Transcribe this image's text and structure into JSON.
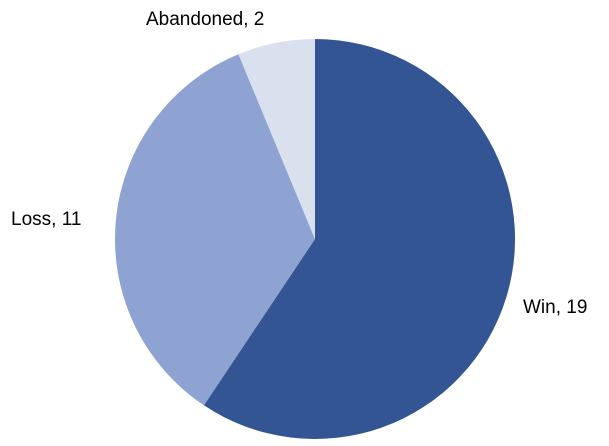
{
  "chart_data": {
    "type": "pie",
    "title": "",
    "categories": [
      "Win",
      "Loss",
      "Abandoned"
    ],
    "values": [
      19,
      11,
      2
    ],
    "colors": [
      "#335593",
      "#8FA3D3",
      "#DBE0EF"
    ],
    "labels": [
      "Win, 19",
      "Loss, 11",
      "Abandoned, 2"
    ],
    "start_angle_deg": 0,
    "direction": "clockwise",
    "legend": "none"
  }
}
